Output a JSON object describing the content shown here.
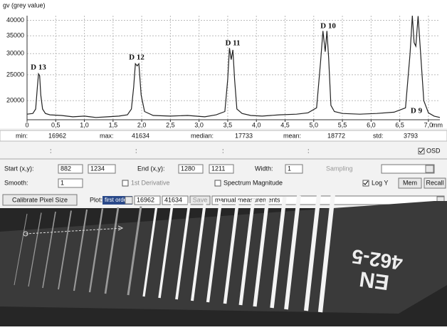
{
  "chart_data": {
    "type": "line",
    "y_label": "gv (grey value)",
    "x_label": "mm",
    "log_y": true,
    "grid": true,
    "color": "#222222",
    "x": [
      0,
      0.1,
      0.15,
      0.18,
      0.2,
      0.22,
      0.24,
      0.27,
      0.32,
      0.4,
      0.6,
      0.8,
      1.0,
      1.2,
      1.4,
      1.6,
      1.75,
      1.82,
      1.86,
      1.89,
      1.92,
      1.95,
      1.99,
      2.05,
      2.2,
      2.5,
      2.8,
      3.1,
      3.3,
      3.45,
      3.5,
      3.53,
      3.56,
      3.59,
      3.62,
      3.66,
      3.75,
      3.9,
      4.1,
      4.4,
      4.7,
      4.9,
      5.05,
      5.12,
      5.16,
      5.2,
      5.23,
      5.26,
      5.3,
      5.36,
      5.5,
      5.8,
      6.1,
      6.4,
      6.6,
      6.68,
      6.72,
      6.75,
      6.78,
      6.82,
      6.86,
      6.92,
      7.0,
      7.1,
      7.2
    ],
    "values": [
      17800,
      17900,
      18600,
      22500,
      25200,
      24800,
      21000,
      18600,
      17900,
      17700,
      17600,
      17400,
      17500,
      17300,
      17400,
      17500,
      17700,
      18600,
      22500,
      27500,
      27000,
      27500,
      21000,
      18200,
      17600,
      17500,
      17600,
      17400,
      17700,
      18200,
      24000,
      31500,
      28500,
      31000,
      24000,
      18600,
      17900,
      17600,
      17500,
      17700,
      17800,
      18000,
      18800,
      28000,
      36500,
      30500,
      36500,
      29000,
      19200,
      18200,
      17900,
      17800,
      17900,
      18100,
      18800,
      30000,
      41634,
      33000,
      32000,
      41500,
      31000,
      20000,
      18000,
      17500,
      17300
    ],
    "xlim": [
      0,
      7.2
    ],
    "ylim": [
      16962,
      41634
    ],
    "xticks": [
      0,
      {
        "value": 0.5,
        "label": "0,5"
      },
      {
        "value": 1.0,
        "label": "1,0"
      },
      {
        "value": 1.5,
        "label": "1,5"
      },
      {
        "value": 2.0,
        "label": "2,0"
      },
      {
        "value": 2.5,
        "label": "2,5"
      },
      {
        "value": 3.0,
        "label": "3,0"
      },
      {
        "value": 3.5,
        "label": "3,5"
      },
      {
        "value": 4.0,
        "label": "4,0"
      },
      {
        "value": 4.5,
        "label": "4,5"
      },
      {
        "value": 5.0,
        "label": "5,0"
      },
      {
        "value": 5.5,
        "label": "5,5"
      },
      {
        "value": 6.0,
        "label": "6,0"
      },
      {
        "value": 6.5,
        "label": "6,5"
      },
      {
        "value": 7.0,
        "label": "7,0"
      }
    ],
    "yticks": [
      20000,
      25000,
      30000,
      35000,
      40000
    ],
    "annotations": [
      "D 13",
      "D 12",
      "D 11",
      "D 10",
      "D 9"
    ]
  },
  "stats": {
    "labels": [
      "min:",
      "max:",
      "median:",
      "mean:",
      "std:"
    ],
    "values": [
      16962,
      41634,
      17733,
      18772,
      3793
    ]
  },
  "markers": [
    ":",
    ":",
    ":",
    ":"
  ],
  "osd": "OSD",
  "row1": {
    "start_label": "Start (x,y):",
    "start_x": 882,
    "start_y": 1234,
    "end_label": "End (x,y):",
    "end_x": 1280,
    "end_y": 1211,
    "width_label": "Width:",
    "width": 1,
    "sampling": "Sampling"
  },
  "row2": {
    "smooth_label": "Smooth:",
    "smooth": 1,
    "derivative": "1st Derivative",
    "spectrum": "Spectrum Magnitude",
    "log_y": "Log Y",
    "mem": "Mem",
    "recall": "Recall"
  },
  "row3": {
    "calibrate": "Calibrate Pixel Size",
    "plot_label": "Plot:",
    "plot_mode": "first order",
    "save": "Save",
    "measurements": "manual measurements"
  },
  "xray": {
    "text_top": "EN",
    "text_bottom": "462-5"
  }
}
